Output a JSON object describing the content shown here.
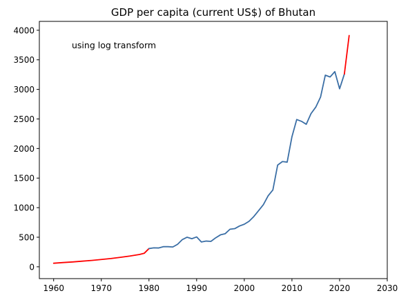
{
  "chart_data": {
    "type": "line",
    "title": "GDP per capita (current US$) of Bhutan",
    "xlabel": "",
    "ylabel": "",
    "annotation": "using log transform",
    "xlim": [
      1957,
      2030
    ],
    "ylim": [
      -200,
      4150
    ],
    "xticks": [
      1960,
      1970,
      1980,
      1990,
      2000,
      2010,
      2020,
      2030
    ],
    "yticks": [
      0,
      500,
      1000,
      1500,
      2000,
      2500,
      3000,
      3500,
      4000
    ],
    "grid": false,
    "colors": {
      "estimated": "#ff0000",
      "observed": "#3a6ea5"
    },
    "series": [
      {
        "role": "estimated",
        "x": [
          1960,
          1962,
          1964,
          1966,
          1968,
          1970,
          1972,
          1974,
          1976,
          1978,
          1979,
          1980
        ],
        "y": [
          60,
          72,
          82,
          95,
          108,
          124,
          140,
          160,
          182,
          208,
          228,
          308
        ]
      },
      {
        "role": "observed",
        "x": [
          1980,
          1981,
          1982,
          1983,
          1984,
          1985,
          1986,
          1987,
          1988,
          1989,
          1990,
          1991,
          1992,
          1993,
          1994,
          1995,
          1996,
          1997,
          1998,
          1999,
          2000,
          2001,
          2002,
          2003,
          2004,
          2005,
          2006,
          2007,
          2008,
          2009,
          2010,
          2011,
          2012,
          2013,
          2014,
          2015,
          2016,
          2017,
          2018,
          2019,
          2020,
          2021
        ],
        "y": [
          308,
          320,
          318,
          340,
          340,
          335,
          380,
          460,
          500,
          475,
          505,
          420,
          435,
          430,
          490,
          540,
          560,
          635,
          645,
          690,
          720,
          770,
          850,
          950,
          1050,
          1200,
          1300,
          1720,
          1780,
          1770,
          2200,
          2490,
          2460,
          2410,
          2590,
          2700,
          2870,
          3240,
          3210,
          3300,
          3010,
          3260
        ]
      },
      {
        "role": "estimated",
        "x": [
          2021,
          2022
        ],
        "y": [
          3260,
          3910
        ]
      }
    ]
  }
}
